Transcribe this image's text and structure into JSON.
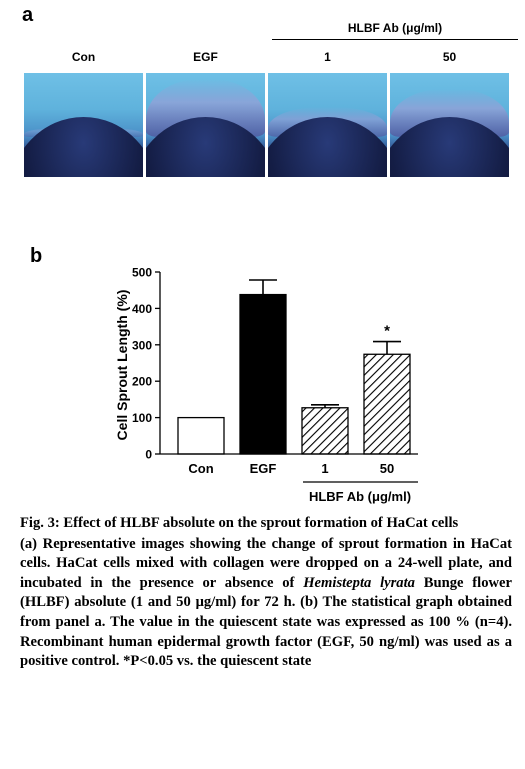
{
  "panel_a": {
    "letter": "a",
    "treatment_label": "HLBF Ab (μg/ml)",
    "columns": [
      "Con",
      "EGF",
      "1",
      "50"
    ]
  },
  "panel_b": {
    "letter": "b"
  },
  "chart_data": {
    "type": "bar",
    "categories": [
      "Con",
      "EGF",
      "1",
      "50"
    ],
    "values": [
      100,
      438,
      127,
      274
    ],
    "errors": [
      0,
      40,
      8,
      35
    ],
    "significance": [
      "",
      "",
      "",
      "*"
    ],
    "bar_fills": [
      "white",
      "black",
      "hatched",
      "hatched"
    ],
    "ylabel": "Cell Sprout Length (%)",
    "ylim": [
      0,
      500
    ],
    "yticks": [
      "0",
      "100",
      "200",
      "300",
      "400",
      "500"
    ],
    "group_label": "HLBF Ab (μg/ml)",
    "grid": false
  },
  "caption": {
    "title": "Fig. 3: Effect of HLBF absolute on the sprout formation of HaCat cells",
    "body_a": "(a) Representative images showing the change of sprout formation in HaCat cells. HaCat cells mixed with collagen were dropped on a 24-well plate, and incubated in the presence or absence of ",
    "species": "Hemistepta lyrata",
    "body_b": " Bunge flower (HLBF) absolute (1 and 50 μg/ml) for 72 h. (b) The statistical graph obtained from panel a. The value in the quiescent state was expressed as 100 % (n=4). Recombinant human epidermal growth factor (EGF, 50 ng/ml) was used as a positive control. *P<0.05 vs. the quiescent state"
  }
}
